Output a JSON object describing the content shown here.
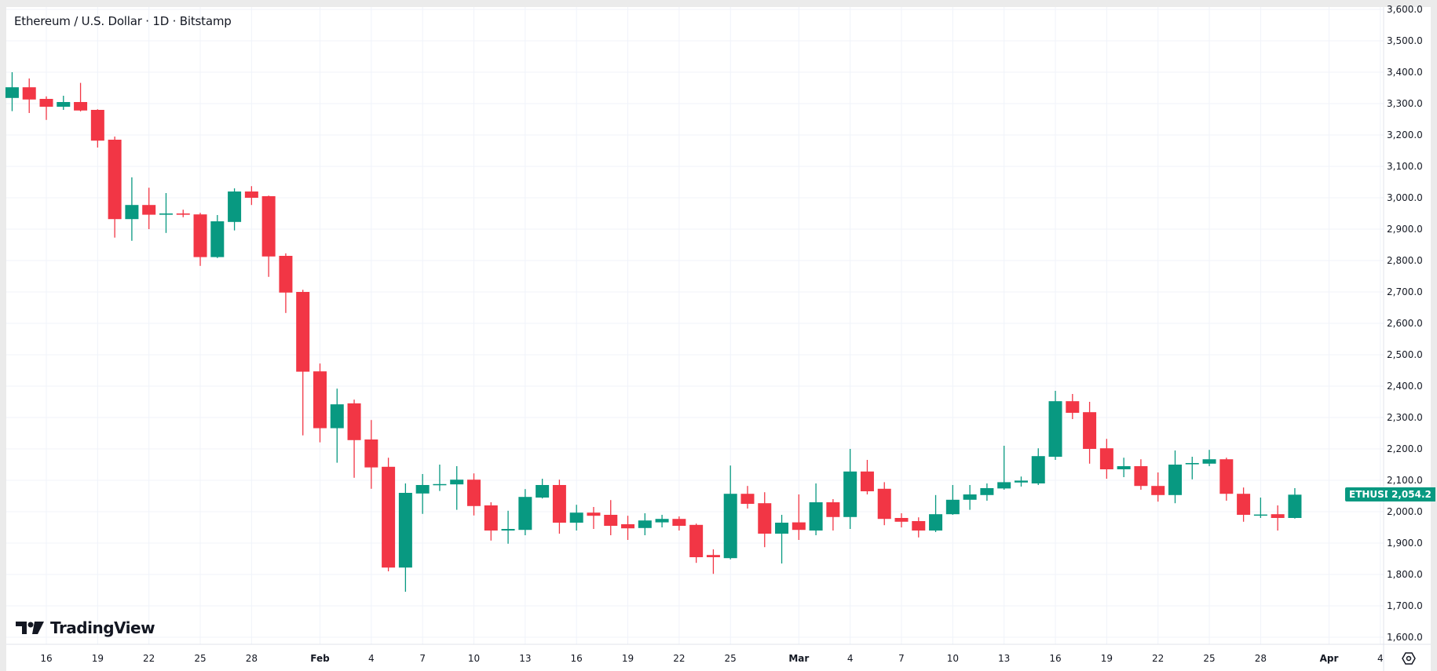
{
  "header": {
    "title": "Ethereum / U.S. Dollar · 1D · Bitstamp"
  },
  "branding": {
    "logo_text": "TradingView"
  },
  "last_price": {
    "symbol": "ETHUSD",
    "value": "2,054.2",
    "color": "#089981"
  },
  "colors": {
    "up": "#089981",
    "down": "#F23645",
    "grid": "#f0f3fa"
  },
  "icons": {
    "settings": "settings-icon"
  },
  "chart_data": {
    "type": "candlestick",
    "title": "Ethereum / U.S. Dollar · 1D · Bitstamp",
    "ylim": [
      1600,
      3600
    ],
    "grid": true,
    "y_ticks": [
      "3,600.0",
      "3,500.0",
      "3,400.0",
      "3,300.0",
      "3,200.0",
      "3,100.0",
      "3,000.0",
      "2,900.0",
      "2,800.0",
      "2,700.0",
      "2,600.0",
      "2,500.0",
      "2,400.0",
      "2,300.0",
      "2,200.0",
      "2,100.0",
      "2,000.0",
      "1,900.0",
      "1,800.0",
      "1,700.0",
      "1,600.0"
    ],
    "x_ticks": [
      "16",
      "19",
      "22",
      "25",
      "28",
      "Feb",
      "4",
      "7",
      "10",
      "13",
      "16",
      "19",
      "22",
      "25",
      "Mar",
      "4",
      "7",
      "10",
      "13",
      "16",
      "19",
      "22",
      "25",
      "28",
      "Apr",
      "4"
    ],
    "columns": [
      "date",
      "open",
      "high",
      "low",
      "close"
    ],
    "candles": [
      [
        "Jan 14",
        3318,
        3400,
        3276,
        3352
      ],
      [
        "Jan 15",
        3352,
        3380,
        3270,
        3313
      ],
      [
        "Jan 16",
        3315,
        3323,
        3248,
        3290
      ],
      [
        "Jan 17",
        3290,
        3325,
        3280,
        3305
      ],
      [
        "Jan 18",
        3305,
        3366,
        3275,
        3278
      ],
      [
        "Jan 19",
        3280,
        3282,
        3160,
        3182
      ],
      [
        "Jan 20",
        3185,
        3195,
        2873,
        2932
      ],
      [
        "Jan 21",
        2932,
        3065,
        2863,
        2977
      ],
      [
        "Jan 22",
        2977,
        3032,
        2900,
        2946
      ],
      [
        "Jan 23",
        2946,
        3015,
        2888,
        2950
      ],
      [
        "Jan 24",
        2950,
        2962,
        2938,
        2946
      ],
      [
        "Jan 25",
        2947,
        2952,
        2783,
        2811
      ],
      [
        "Jan 26",
        2811,
        2945,
        2808,
        2925
      ],
      [
        "Jan 27",
        2923,
        3030,
        2896,
        3020
      ],
      [
        "Jan 28",
        3020,
        3037,
        2977,
        3000
      ],
      [
        "Jan 29",
        3005,
        3007,
        2748,
        2813
      ],
      [
        "Jan 30",
        2815,
        2823,
        2633,
        2698
      ],
      [
        "Jan 31",
        2700,
        2707,
        2243,
        2446
      ],
      [
        "Feb 1",
        2447,
        2472,
        2221,
        2266
      ],
      [
        "Feb 2",
        2266,
        2392,
        2156,
        2342
      ],
      [
        "Feb 3",
        2345,
        2357,
        2108,
        2228
      ],
      [
        "Feb 4",
        2230,
        2292,
        2073,
        2141
      ],
      [
        "Feb 5",
        2143,
        2172,
        1810,
        1822
      ],
      [
        "Feb 6",
        1822,
        2090,
        1745,
        2060
      ],
      [
        "Feb 7",
        2058,
        2120,
        1993,
        2085
      ],
      [
        "Feb 8",
        2085,
        2150,
        2066,
        2088
      ],
      [
        "Feb 9",
        2087,
        2145,
        2006,
        2102
      ],
      [
        "Feb 10",
        2102,
        2122,
        1988,
        2018
      ],
      [
        "Feb 11",
        2020,
        2030,
        1908,
        1940
      ],
      [
        "Feb 12",
        1940,
        2003,
        1898,
        1945
      ],
      [
        "Feb 13",
        1942,
        2072,
        1925,
        2047
      ],
      [
        "Feb 14",
        2045,
        2105,
        2042,
        2085
      ],
      [
        "Feb 15",
        2085,
        2102,
        1930,
        1965
      ],
      [
        "Feb 16",
        1965,
        2022,
        1940,
        1997
      ],
      [
        "Feb 17",
        1997,
        2015,
        1945,
        1987
      ],
      [
        "Feb 18",
        1990,
        2037,
        1925,
        1955
      ],
      [
        "Feb 19",
        1960,
        1987,
        1910,
        1947
      ],
      [
        "Feb 20",
        1948,
        1995,
        1925,
        1972
      ],
      [
        "Feb 21",
        1966,
        1990,
        1950,
        1977
      ],
      [
        "Feb 22",
        1977,
        1985,
        1940,
        1955
      ],
      [
        "Feb 23",
        1958,
        1962,
        1837,
        1855
      ],
      [
        "Feb 24",
        1862,
        1880,
        1802,
        1855
      ],
      [
        "Feb 25",
        1852,
        2147,
        1848,
        2057
      ],
      [
        "Feb 26",
        2057,
        2082,
        2010,
        2025
      ],
      [
        "Feb 27",
        2027,
        2062,
        1887,
        1930
      ],
      [
        "Feb 28",
        1930,
        1990,
        1835,
        1965
      ],
      [
        "Mar 1",
        1966,
        2055,
        1910,
        1942
      ],
      [
        "Mar 2",
        1940,
        2090,
        1925,
        2030
      ],
      [
        "Mar 3",
        2030,
        2040,
        1940,
        1983
      ],
      [
        "Mar 4",
        1983,
        2200,
        1945,
        2128
      ],
      [
        "Mar 5",
        2128,
        2165,
        2055,
        2065
      ],
      [
        "Mar 6",
        2073,
        2094,
        1957,
        1977
      ],
      [
        "Mar 7",
        1980,
        1995,
        1950,
        1968
      ],
      [
        "Mar 8",
        1970,
        1982,
        1918,
        1940
      ],
      [
        "Mar 9",
        1940,
        2053,
        1935,
        1992
      ],
      [
        "Mar 10",
        1992,
        2085,
        1990,
        2038
      ],
      [
        "Mar 11",
        2038,
        2085,
        2006,
        2055
      ],
      [
        "Mar 12",
        2053,
        2090,
        2035,
        2075
      ],
      [
        "Mar 13",
        2074,
        2210,
        2070,
        2094
      ],
      [
        "Mar 14",
        2093,
        2112,
        2080,
        2099
      ],
      [
        "Mar 15",
        2090,
        2202,
        2085,
        2177
      ],
      [
        "Mar 16",
        2175,
        2385,
        2165,
        2352
      ],
      [
        "Mar 17",
        2352,
        2375,
        2295,
        2315
      ],
      [
        "Mar 18",
        2317,
        2350,
        2153,
        2200
      ],
      [
        "Mar 19",
        2202,
        2232,
        2105,
        2135
      ],
      [
        "Mar 20",
        2135,
        2172,
        2110,
        2145
      ],
      [
        "Mar 21",
        2145,
        2167,
        2070,
        2082
      ],
      [
        "Mar 22",
        2082,
        2125,
        2032,
        2053
      ],
      [
        "Mar 23",
        2053,
        2195,
        2027,
        2150
      ],
      [
        "Mar 24",
        2151,
        2175,
        2103,
        2155
      ],
      [
        "Mar 25",
        2153,
        2197,
        2145,
        2167
      ],
      [
        "Mar 26",
        2167,
        2172,
        2035,
        2057
      ],
      [
        "Mar 27",
        2057,
        2077,
        1968,
        1990
      ],
      [
        "Mar 28",
        1988,
        2045,
        1980,
        1991
      ],
      [
        "Mar 29",
        1992,
        2020,
        1940,
        1980
      ],
      [
        "Mar 30",
        1980,
        2075,
        1978,
        2054.2
      ]
    ]
  }
}
